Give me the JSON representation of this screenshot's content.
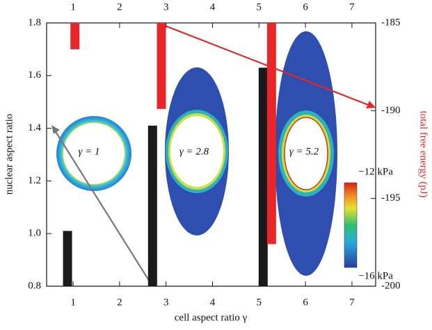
{
  "chart_data": {
    "type": "bar",
    "x_label": "cell aspect ratio γ",
    "y_label": "nuclear aspect ratio",
    "y2_label": "total free energy (pJ)",
    "xlim": [
      0.43,
      7.51
    ],
    "xticks": [
      1,
      2,
      3,
      4,
      5,
      6,
      7
    ],
    "ylim": [
      0.8,
      1.8
    ],
    "yticks": [
      0.8,
      {
        "value": 1,
        "label": "1.0"
      },
      1.2,
      1.4,
      1.6,
      1.8
    ],
    "y2lim": [
      -200,
      -185
    ],
    "y2ticks": [
      -200,
      -195,
      -190,
      -185
    ],
    "series": [
      {
        "color": "#1a1a1a",
        "x": [
          0.88,
          2.71,
          5.09
        ],
        "values": [
          1.01,
          1.41,
          1.63
        ]
      },
      {
        "color": "#e8262a",
        "axis": "y2",
        "x": [
          1.04,
          2.9,
          5.27
        ],
        "values": [
          -186.5,
          -189.9,
          -197.6
        ]
      }
    ],
    "annotations": [
      "γ = 1",
      "γ = 2.8",
      "γ = 5.2"
    ],
    "colorbar_labels": [
      "−12 kPa",
      "−16 kPa"
    ]
  }
}
